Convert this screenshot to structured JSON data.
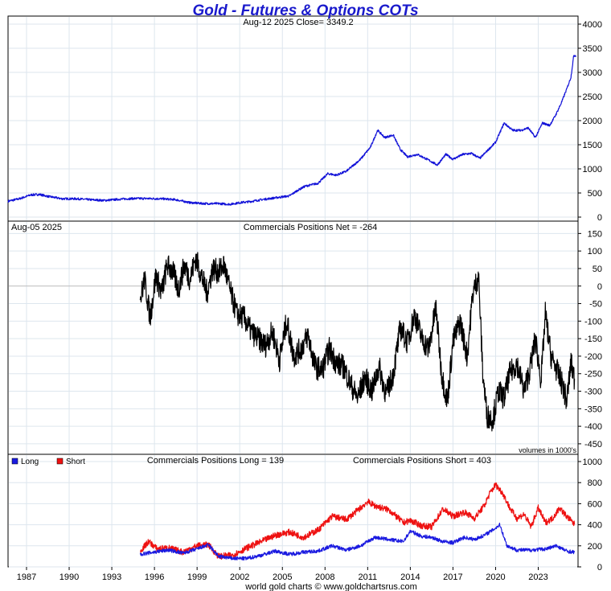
{
  "title": "Gold - Futures & Options COTs",
  "footer": "world gold charts © www.goldchartsrus.com",
  "colors": {
    "price": "#1212d8",
    "net": "#000000",
    "long": "#1a1ae0",
    "short": "#ee1111",
    "grid": "#dde6ee"
  },
  "chart_data": [
    {
      "type": "line",
      "panel": "price",
      "header": "Aug-12  2025   Close= 3349.2",
      "ylim": [
        0,
        4000
      ],
      "yticks": [
        0,
        500,
        1000,
        1500,
        2000,
        2500,
        3000,
        3500,
        4000
      ],
      "xlim": [
        1985.7,
        2025.8
      ],
      "series": [
        {
          "x": [
            1985.7,
            1986.5,
            1987.3,
            1987.9,
            1988.5,
            1989.5,
            1990.5,
            1991.5,
            1992.5,
            1993.5,
            1994.5,
            1995.5,
            1996.5,
            1997.5,
            1998.5,
            1999.5,
            2000.5,
            2001.3,
            2002.0,
            2002.7,
            2003.5,
            2004.5,
            2005.5,
            2006.1,
            2006.6,
            2007.5,
            2008.2,
            2008.8,
            2009.5,
            2010.5,
            2011.2,
            2011.7,
            2012.2,
            2012.8,
            2013.3,
            2013.8,
            2014.5,
            2015.3,
            2015.9,
            2016.5,
            2017.0,
            2017.7,
            2018.3,
            2018.9,
            2019.5,
            2020.0,
            2020.6,
            2021.2,
            2021.8,
            2022.3,
            2022.8,
            2023.3,
            2023.8,
            2024.2,
            2024.6,
            2025.0,
            2025.3,
            2025.5,
            2025.65
          ],
          "values": [
            330,
            380,
            460,
            470,
            430,
            380,
            380,
            360,
            345,
            370,
            385,
            385,
            380,
            360,
            300,
            280,
            280,
            265,
            300,
            320,
            360,
            400,
            440,
            560,
            640,
            700,
            900,
            870,
            950,
            1200,
            1450,
            1800,
            1650,
            1700,
            1400,
            1250,
            1300,
            1180,
            1080,
            1300,
            1200,
            1300,
            1320,
            1220,
            1400,
            1550,
            1950,
            1800,
            1800,
            1850,
            1650,
            1950,
            1900,
            2100,
            2350,
            2650,
            2900,
            3350,
            3349
          ]
        }
      ]
    },
    {
      "type": "line",
      "panel": "net",
      "header_left": "Aug-05  2025",
      "header_center": "Commercials Positions Net = -264",
      "note": "volumes in 1000's",
      "ylim": [
        -480,
        160
      ],
      "yticks": [
        150,
        100,
        50,
        0,
        -50,
        -100,
        -150,
        -200,
        -250,
        -300,
        -350,
        -400,
        -450
      ],
      "series": [
        {
          "x": [
            1995.0,
            1995.3,
            1995.7,
            1996.1,
            1996.5,
            1996.9,
            1997.3,
            1997.7,
            1998.1,
            1998.5,
            1998.9,
            1999.3,
            1999.7,
            2000.1,
            2000.5,
            2000.9,
            2001.3,
            2001.8,
            2002.3,
            2002.8,
            2003.3,
            2003.8,
            2004.3,
            2004.8,
            2005.3,
            2005.8,
            2006.3,
            2006.8,
            2007.3,
            2007.8,
            2008.3,
            2008.8,
            2009.3,
            2009.8,
            2010.3,
            2010.8,
            2011.3,
            2011.8,
            2012.3,
            2012.8,
            2013.3,
            2013.8,
            2014.3,
            2014.8,
            2015.3,
            2015.8,
            2016.2,
            2016.6,
            2017.0,
            2017.5,
            2018.0,
            2018.4,
            2018.8,
            2019.1,
            2019.4,
            2019.8,
            2020.2,
            2020.6,
            2021.0,
            2021.5,
            2022.0,
            2022.4,
            2022.8,
            2023.2,
            2023.5,
            2023.9,
            2024.3,
            2024.7,
            2025.0,
            2025.3,
            2025.55
          ],
          "values": [
            -40,
            20,
            -90,
            30,
            -20,
            60,
            40,
            -10,
            60,
            20,
            80,
            30,
            -20,
            50,
            40,
            60,
            -10,
            -80,
            -90,
            -130,
            -150,
            -170,
            -130,
            -210,
            -100,
            -200,
            -180,
            -140,
            -230,
            -240,
            -180,
            -220,
            -230,
            -280,
            -320,
            -260,
            -300,
            -230,
            -310,
            -250,
            -120,
            -160,
            -80,
            -150,
            -180,
            -60,
            -250,
            -330,
            -160,
            -100,
            -200,
            -20,
            30,
            -250,
            -370,
            -380,
            -300,
            -320,
            -250,
            -220,
            -300,
            -240,
            -150,
            -270,
            -80,
            -200,
            -240,
            -280,
            -330,
            -220,
            -264
          ]
        }
      ]
    },
    {
      "type": "line",
      "panel": "long_short",
      "legend": [
        "Long",
        "Short"
      ],
      "header_long": "Commercials Positions Long = 139",
      "header_short": "Commercials Positions Short = 403",
      "ylim": [
        0,
        1000
      ],
      "yticks": [
        0,
        200,
        400,
        600,
        800,
        1000
      ],
      "xticks": [
        1987,
        1990,
        1993,
        1996,
        1999,
        2002,
        2005,
        2008,
        2011,
        2014,
        2017,
        2020,
        2023
      ],
      "series": [
        {
          "name": "Long",
          "x": [
            1995.0,
            1996.0,
            1997.0,
            1998.0,
            1999.0,
            1999.8,
            2000.5,
            2001.5,
            2002.5,
            2003.5,
            2004.5,
            2005.5,
            2006.5,
            2007.5,
            2008.5,
            2009.5,
            2010.5,
            2011.5,
            2012.5,
            2013.5,
            2014.0,
            2014.8,
            2015.5,
            2016.3,
            2017.0,
            2017.8,
            2018.5,
            2019.2,
            2019.8,
            2020.3,
            2020.8,
            2021.5,
            2022.5,
            2023.5,
            2024.3,
            2025.0,
            2025.55
          ],
          "values": [
            120,
            140,
            160,
            130,
            170,
            210,
            100,
            80,
            80,
            110,
            150,
            120,
            140,
            150,
            200,
            160,
            200,
            280,
            260,
            240,
            340,
            290,
            280,
            240,
            230,
            280,
            260,
            300,
            350,
            400,
            200,
            160,
            160,
            170,
            200,
            150,
            139
          ]
        },
        {
          "name": "Short",
          "x": [
            1995.0,
            1995.6,
            1996.2,
            1997.0,
            1998.0,
            1999.0,
            1999.8,
            2000.5,
            2001.5,
            2002.5,
            2003.5,
            2004.5,
            2005.5,
            2006.5,
            2007.5,
            2008.5,
            2009.5,
            2010.5,
            2011.0,
            2011.5,
            2012.5,
            2013.5,
            2014.0,
            2014.8,
            2015.5,
            2016.3,
            2017.0,
            2017.8,
            2018.5,
            2019.2,
            2019.6,
            2020.0,
            2020.5,
            2021.0,
            2021.5,
            2022.0,
            2022.5,
            2023.0,
            2023.5,
            2024.0,
            2024.5,
            2025.0,
            2025.55
          ],
          "values": [
            150,
            240,
            170,
            180,
            140,
            200,
            210,
            100,
            110,
            180,
            240,
            300,
            330,
            280,
            350,
            480,
            450,
            560,
            620,
            580,
            540,
            420,
            440,
            390,
            380,
            550,
            480,
            520,
            460,
            580,
            700,
            780,
            700,
            560,
            460,
            500,
            380,
            560,
            420,
            460,
            560,
            480,
            403
          ]
        }
      ]
    }
  ]
}
